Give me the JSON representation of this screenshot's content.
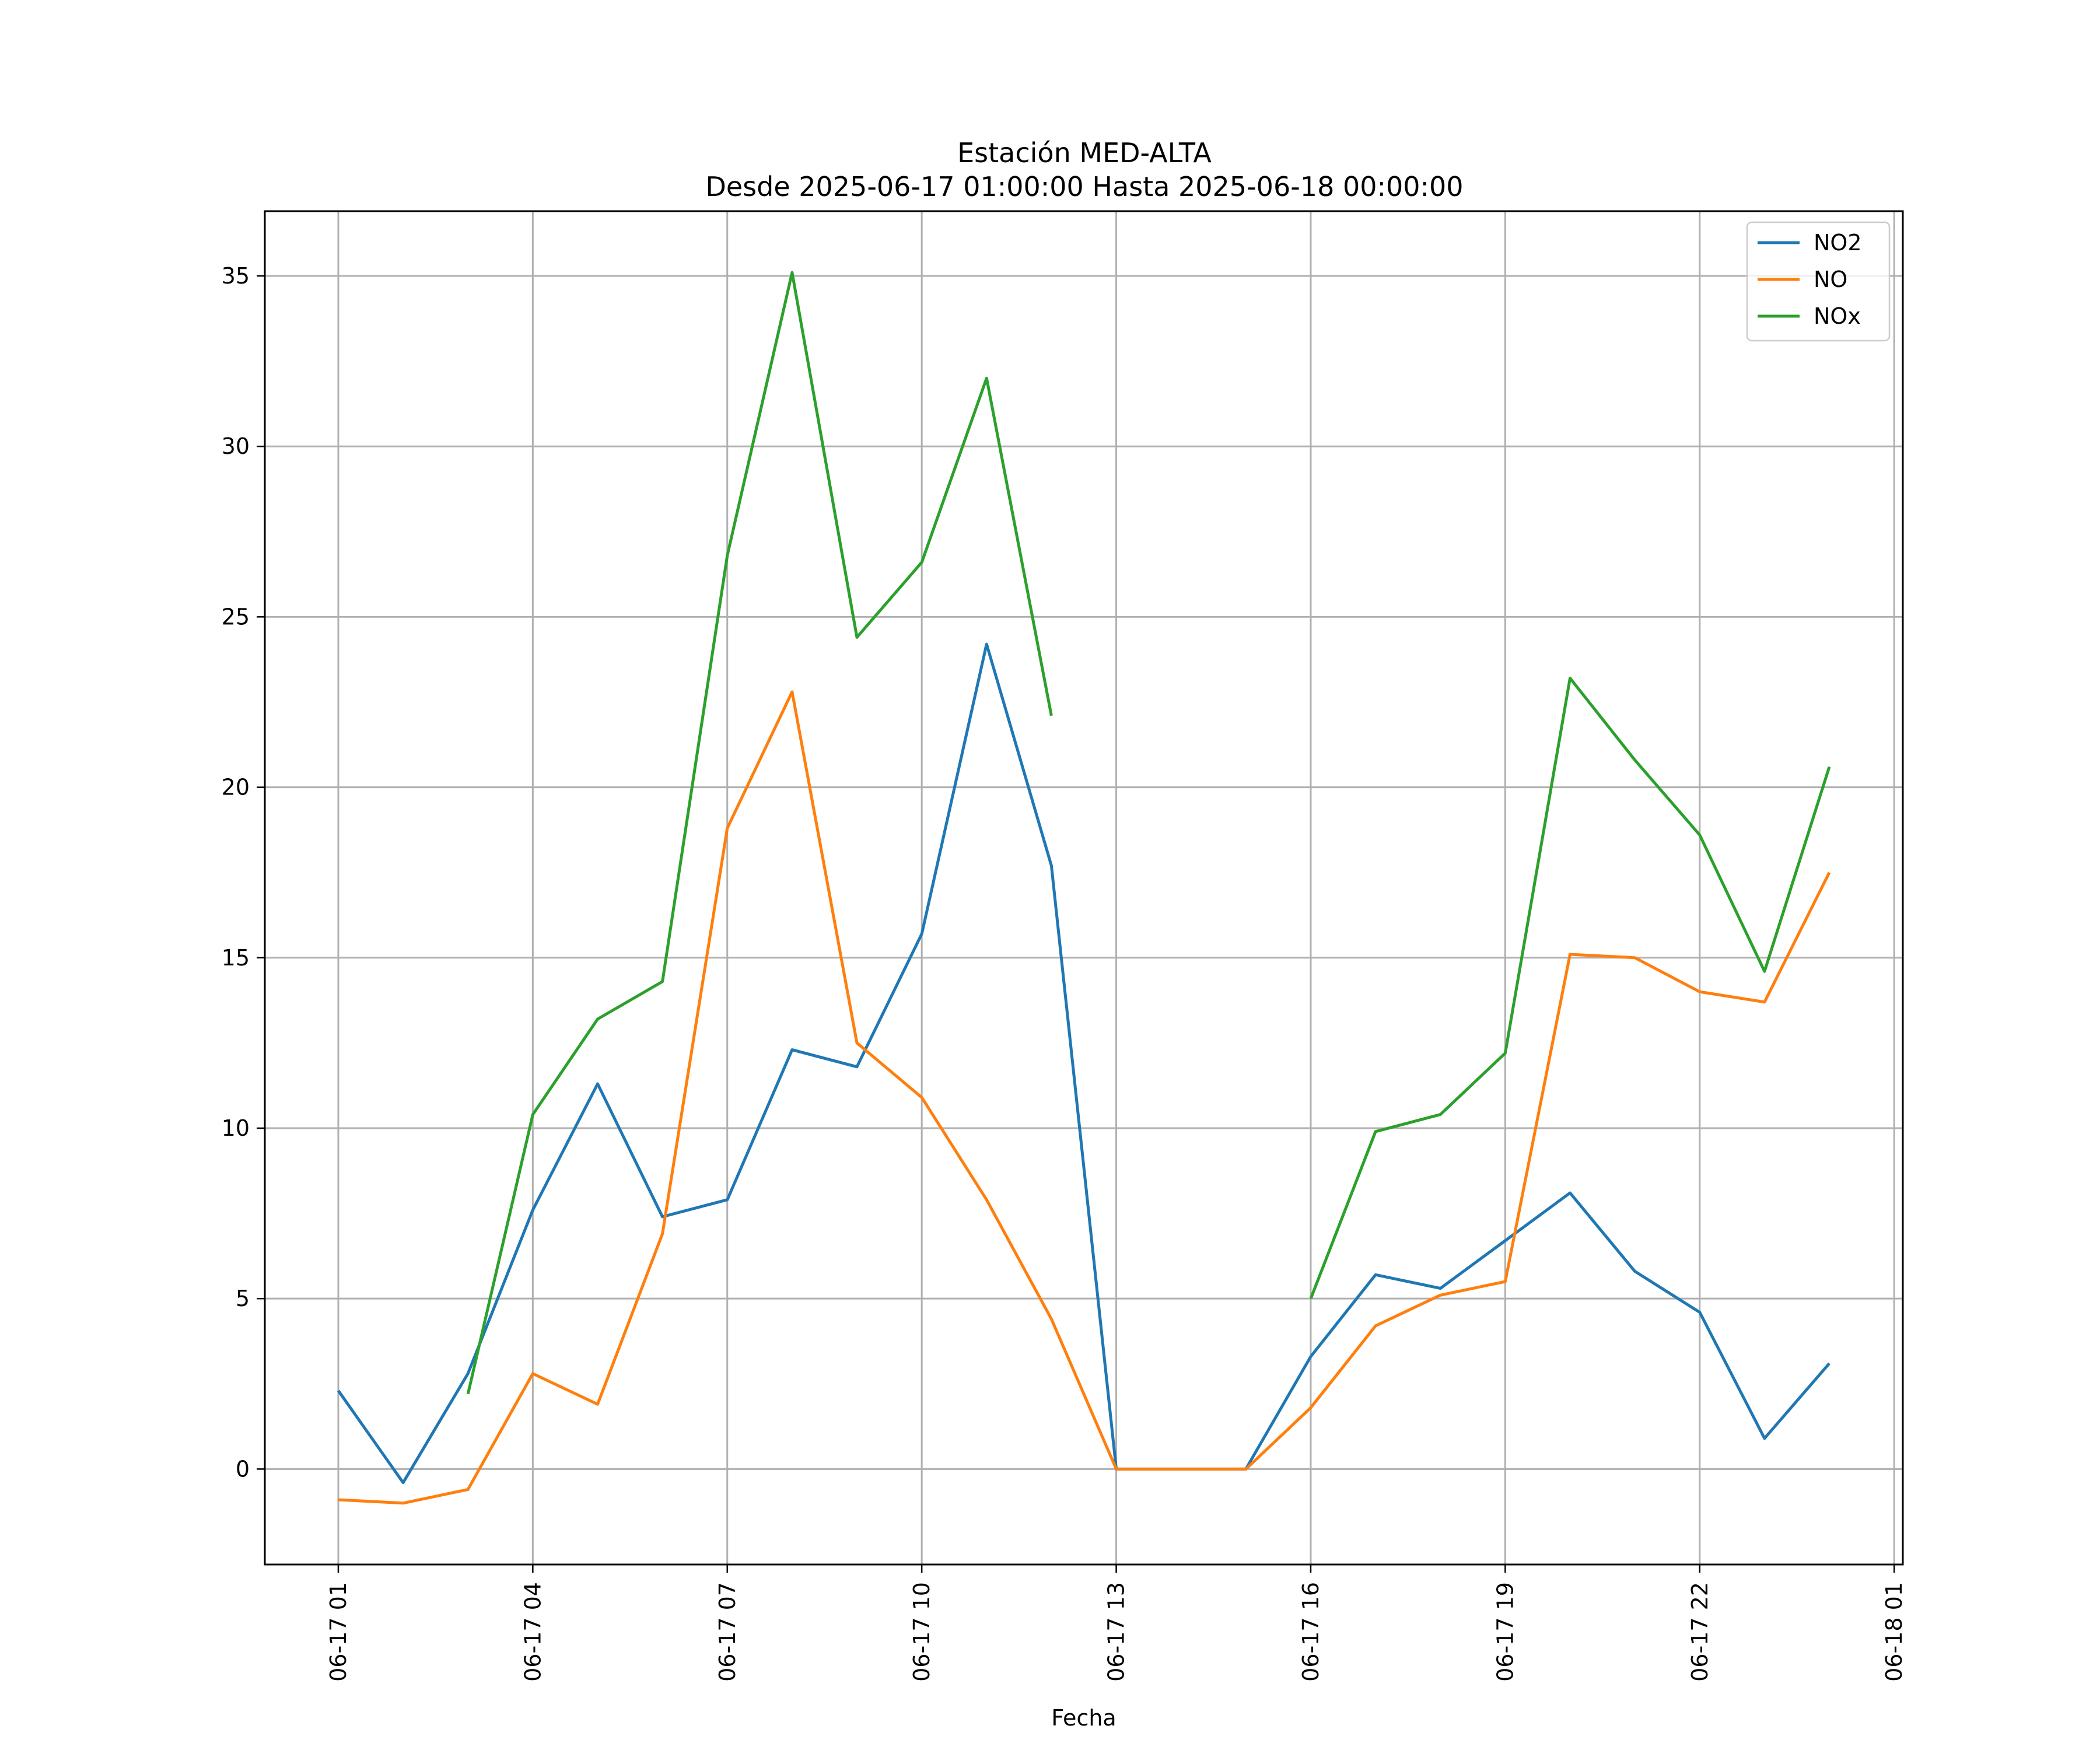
{
  "chart_data": {
    "type": "line",
    "title": "Estación MED-ALTA",
    "subtitle": "Desde 2025-06-17 01:00:00 Hasta 2025-06-18 00:00:00",
    "xlabel": "Fecha",
    "ylabel": "",
    "x_hours": [
      "2025-06-17 01:00",
      "2025-06-17 02:00",
      "2025-06-17 03:00",
      "2025-06-17 04:00",
      "2025-06-17 05:00",
      "2025-06-17 06:00",
      "2025-06-17 07:00",
      "2025-06-17 08:00",
      "2025-06-17 09:00",
      "2025-06-17 10:00",
      "2025-06-17 11:00",
      "2025-06-17 12:00",
      "2025-06-17 13:00",
      "2025-06-17 14:00",
      "2025-06-17 15:00",
      "2025-06-17 16:00",
      "2025-06-17 17:00",
      "2025-06-17 18:00",
      "2025-06-17 19:00",
      "2025-06-17 20:00",
      "2025-06-17 21:00",
      "2025-06-17 22:00",
      "2025-06-17 23:00",
      "2025-06-18 00:00"
    ],
    "x_range": [
      "2025-06-16 23:52",
      "2025-06-18 01:08"
    ],
    "x_ticks": [
      "06-17 01",
      "06-17 04",
      "06-17 07",
      "06-17 10",
      "06-17 13",
      "06-17 16",
      "06-17 19",
      "06-17 22",
      "06-18 01"
    ],
    "ylim": [
      -2.8,
      36.9
    ],
    "y_ticks": [
      0,
      5,
      10,
      15,
      20,
      25,
      30,
      35
    ],
    "grid": true,
    "legend_position": "top-right",
    "series": [
      {
        "name": "NO2",
        "color": "#1f77b4",
        "values": [
          2.3,
          -0.4,
          2.8,
          7.6,
          11.3,
          7.4,
          7.9,
          12.3,
          11.8,
          15.7,
          24.2,
          17.7,
          0,
          0,
          0,
          3.3,
          5.7,
          5.3,
          6.7,
          8.1,
          5.8,
          4.6,
          0.9,
          3.1
        ]
      },
      {
        "name": "NO",
        "color": "#ff7f0e",
        "values": [
          -0.9,
          -1.0,
          -0.6,
          2.8,
          1.9,
          6.9,
          18.8,
          22.8,
          12.5,
          10.9,
          7.9,
          4.4,
          0,
          0,
          0,
          1.8,
          4.2,
          5.1,
          5.5,
          15.1,
          15.0,
          14.0,
          13.7,
          17.5
        ]
      },
      {
        "name": "NOx",
        "color": "#2ca02c",
        "values": [
          null,
          null,
          2.2,
          10.4,
          13.2,
          14.3,
          26.8,
          35.1,
          24.4,
          26.6,
          32.0,
          22.1,
          null,
          null,
          null,
          5.0,
          9.9,
          10.4,
          12.2,
          23.2,
          20.8,
          18.6,
          14.6,
          20.6
        ]
      }
    ]
  }
}
